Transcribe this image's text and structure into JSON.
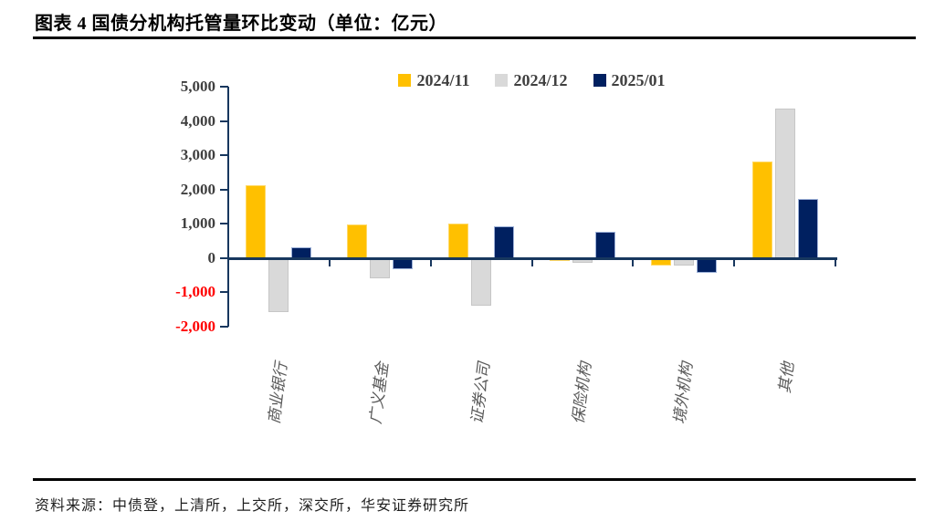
{
  "header": {
    "title": "图表 4 国债分机构托管量环比变动（单位：亿元）"
  },
  "footer": {
    "source": "资料来源：中债登，上清所，上交所，深交所，华安证券研究所"
  },
  "chart_data": {
    "type": "bar",
    "title": "图表 4 国债分机构托管量环比变动（单位：亿元）",
    "unit": "亿元",
    "categories": [
      "商业银行",
      "广义基金",
      "证券公司",
      "保险机构",
      "境外机构",
      "其他"
    ],
    "series": [
      {
        "name": "2024/11",
        "color": "#FFC000",
        "edge": "#FFD966",
        "values": [
          2100,
          950,
          980,
          -50,
          -200,
          2800
        ]
      },
      {
        "name": "2024/12",
        "color": "#D9D9D9",
        "edge": "#C6C6C6",
        "values": [
          -1550,
          -560,
          -1370,
          -100,
          -180,
          4340
        ]
      },
      {
        "name": "2025/01",
        "color": "#002060",
        "edge": "#9DB1D8",
        "values": [
          300,
          -290,
          890,
          750,
          -400,
          1700
        ]
      }
    ],
    "ylim": [
      -2000,
      5000
    ],
    "yticks": [
      5000,
      4000,
      3000,
      2000,
      1000,
      0,
      -1000,
      -2000
    ],
    "ytick_labels": [
      "5,000",
      "4,000",
      "3,000",
      "2,000",
      "1,000",
      "0",
      "-1,000",
      "-2,000"
    ],
    "xlabel": "",
    "ylabel": "",
    "grid": false,
    "legend_position": "top",
    "colors": {
      "axis": "#17375E",
      "tick_label": "#3F3F3F",
      "negative_tick_label": "#FF0000",
      "category_label": "#595959",
      "title": "#000000",
      "divider": "#000000"
    }
  }
}
